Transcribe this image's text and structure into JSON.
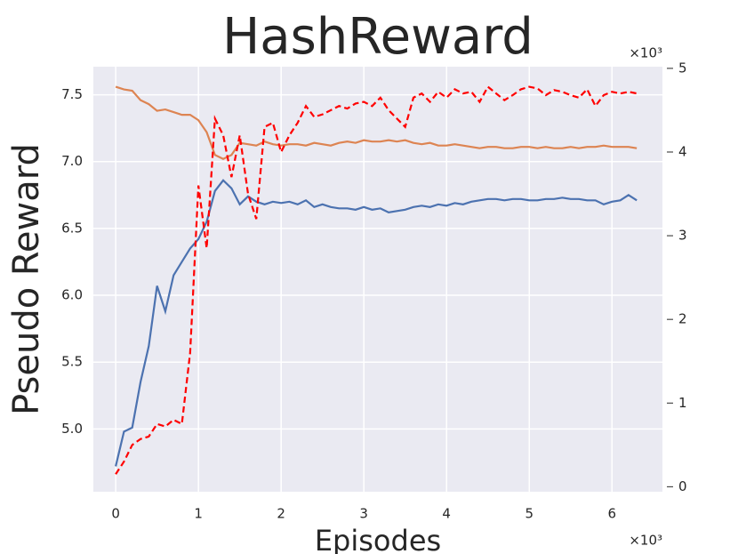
{
  "chart_data": {
    "type": "line",
    "title": "HashReward",
    "xlabel": "Episodes",
    "ylabel": "Pseudo Reward",
    "x_offset_label": "×10³",
    "y2_offset_label": "×10³",
    "x": [
      0,
      0.1,
      0.2,
      0.3,
      0.4,
      0.5,
      0.6,
      0.7,
      0.8,
      0.9,
      1.0,
      1.1,
      1.2,
      1.3,
      1.4,
      1.5,
      1.6,
      1.7,
      1.8,
      1.9,
      2.0,
      2.1,
      2.2,
      2.3,
      2.4,
      2.5,
      2.6,
      2.7,
      2.8,
      2.9,
      3.0,
      3.1,
      3.2,
      3.3,
      3.4,
      3.5,
      3.6,
      3.7,
      3.8,
      3.9,
      4.0,
      4.1,
      4.2,
      4.3,
      4.4,
      4.5,
      4.6,
      4.7,
      4.8,
      4.9,
      5.0,
      5.1,
      5.2,
      5.3,
      5.4,
      5.5,
      5.6,
      5.7,
      5.8,
      5.9,
      6.0,
      6.1,
      6.2,
      6.3
    ],
    "series": [
      {
        "color": "#4c72b0",
        "values": [
          4.72,
          4.98,
          5.01,
          5.35,
          5.62,
          6.07,
          5.88,
          6.15,
          6.25,
          6.35,
          6.42,
          6.55,
          6.78,
          6.86,
          6.8,
          6.68,
          6.74,
          6.7,
          6.68,
          6.7,
          6.69,
          6.7,
          6.68,
          6.71,
          6.66,
          6.68,
          6.66,
          6.65,
          6.65,
          6.64,
          6.66,
          6.64,
          6.65,
          6.62,
          6.63,
          6.64,
          6.66,
          6.67,
          6.66,
          6.68,
          6.67,
          6.69,
          6.68,
          6.7,
          6.71,
          6.72,
          6.72,
          6.71,
          6.72,
          6.72,
          6.71,
          6.71,
          6.72,
          6.72,
          6.73,
          6.72,
          6.72,
          6.71,
          6.71,
          6.68,
          6.7,
          6.71,
          6.75,
          6.71
        ]
      },
      {
        "color": "#dd8452",
        "values": [
          7.56,
          7.54,
          7.53,
          7.46,
          7.43,
          7.38,
          7.39,
          7.37,
          7.35,
          7.35,
          7.31,
          7.22,
          7.05,
          7.02,
          7.05,
          7.14,
          7.13,
          7.12,
          7.15,
          7.13,
          7.12,
          7.13,
          7.13,
          7.12,
          7.14,
          7.13,
          7.12,
          7.14,
          7.15,
          7.14,
          7.16,
          7.15,
          7.15,
          7.16,
          7.15,
          7.16,
          7.14,
          7.13,
          7.14,
          7.12,
          7.12,
          7.13,
          7.12,
          7.11,
          7.1,
          7.11,
          7.11,
          7.1,
          7.1,
          7.11,
          7.11,
          7.1,
          7.11,
          7.1,
          7.1,
          7.11,
          7.1,
          7.11,
          7.11,
          7.12,
          7.11,
          7.11,
          7.11,
          7.1
        ]
      },
      {
        "color": "#ff0000",
        "dashed": true,
        "axis": "y2",
        "values": [
          0.15,
          0.3,
          0.5,
          0.57,
          0.6,
          0.75,
          0.72,
          0.8,
          0.75,
          1.6,
          3.6,
          2.85,
          4.4,
          4.2,
          3.7,
          4.2,
          3.5,
          3.2,
          4.3,
          4.35,
          4.0,
          4.2,
          4.35,
          4.55,
          4.42,
          4.45,
          4.5,
          4.55,
          4.52,
          4.58,
          4.6,
          4.55,
          4.65,
          4.5,
          4.4,
          4.3,
          4.65,
          4.7,
          4.6,
          4.72,
          4.65,
          4.75,
          4.7,
          4.72,
          4.6,
          4.78,
          4.7,
          4.62,
          4.68,
          4.75,
          4.78,
          4.76,
          4.68,
          4.74,
          4.72,
          4.68,
          4.65,
          4.75,
          4.55,
          4.68,
          4.72,
          4.7,
          4.72,
          4.7
        ]
      }
    ],
    "xlim": [
      -0.27,
      6.61
    ],
    "xticks": [
      0,
      1,
      2,
      3,
      4,
      5,
      6
    ],
    "ylim": [
      4.53,
      7.71
    ],
    "yticks": [
      {
        "value": 5,
        "label": "5.0"
      },
      5.5,
      {
        "value": 6,
        "label": "6.0"
      },
      6.5,
      {
        "value": 7,
        "label": "7.0"
      },
      7.5
    ],
    "y2lim": [
      -0.06,
      5.02
    ],
    "y2ticks": [
      0,
      1,
      2,
      3,
      4,
      5
    ],
    "grid": true,
    "background": "#eaeaf2"
  }
}
